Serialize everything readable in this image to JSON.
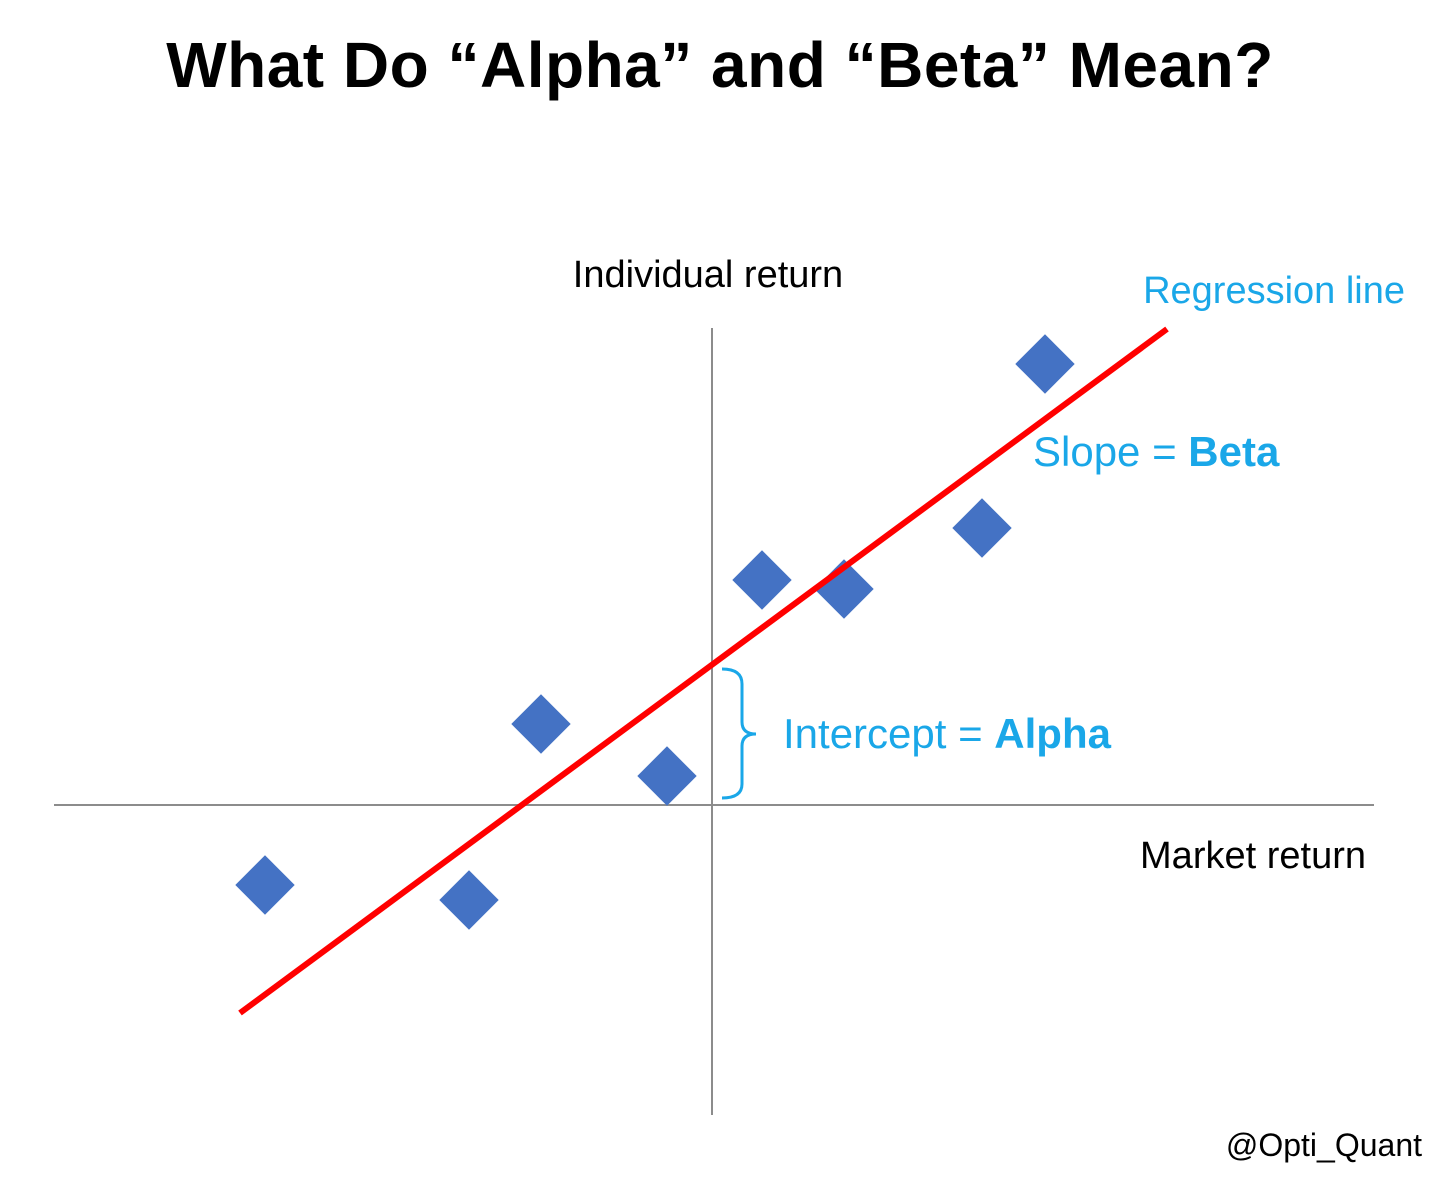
{
  "title": "What Do “Alpha” and “Beta” Mean?",
  "credit": "@Opti_Quant",
  "diagram": {
    "y_axis_label": "Individual return",
    "x_axis_label": "Market return",
    "regression_label": "Regression line",
    "slope_label_prefix": "Slope = ",
    "slope_label_bold": "Beta",
    "intercept_label_prefix": "Intercept = ",
    "intercept_label_bold": "Alpha"
  },
  "colors": {
    "axis": "#8c8c8c",
    "regression_line": "#ff0000",
    "points": "#4472c4",
    "annotation": "#1aa7e8",
    "text": "#000000"
  }
}
